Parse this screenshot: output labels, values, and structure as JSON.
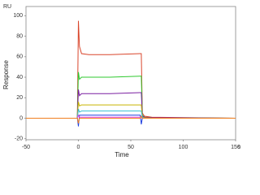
{
  "chart_data": {
    "type": "line",
    "y_unit": "RU",
    "y_label": "Response",
    "x_label": "Time",
    "x_unit": "s",
    "x": [
      -50,
      -1,
      0,
      1,
      3,
      10,
      30,
      59,
      60,
      61,
      63,
      70,
      150
    ],
    "series": [
      {
        "color": "#d9452b",
        "values": [
          0,
          0,
          95,
          70,
          63,
          62,
          62,
          63,
          63,
          5,
          2,
          1,
          0
        ]
      },
      {
        "color": "#2fc92f",
        "values": [
          0,
          0,
          45,
          38,
          40,
          40,
          40,
          41,
          41,
          3,
          1,
          0.5,
          0
        ]
      },
      {
        "color": "#7a1fa0",
        "values": [
          0,
          0,
          28,
          22,
          24,
          24,
          24,
          25,
          25,
          2,
          1,
          0.5,
          0
        ]
      },
      {
        "color": "#c8b400",
        "values": [
          0,
          0,
          16,
          12,
          13,
          13,
          13,
          13,
          13,
          1,
          0.5,
          0,
          0
        ]
      },
      {
        "color": "#35c0d0",
        "values": [
          0,
          0,
          9,
          6,
          7,
          7,
          7,
          7,
          7,
          1,
          0,
          0,
          0
        ]
      },
      {
        "color": "#2040e0",
        "values": [
          0,
          0,
          -8,
          3,
          3,
          3,
          3,
          3,
          -6,
          0,
          0,
          0,
          0
        ]
      },
      {
        "color": "#e040e0",
        "values": [
          0,
          0,
          3,
          1,
          1,
          1,
          1,
          1,
          1,
          0,
          0,
          0,
          0
        ]
      },
      {
        "color": "#f08020",
        "values": [
          0,
          0,
          -5,
          0,
          0,
          0,
          0,
          0,
          2,
          0,
          0,
          0,
          0
        ]
      }
    ],
    "xlim": [
      -50,
      150
    ],
    "xticks": [
      -50,
      0,
      50,
      100,
      150
    ],
    "ylim": [
      -21,
      109
    ],
    "yticks": [
      -20,
      0,
      20,
      40,
      60,
      80,
      100
    ]
  }
}
